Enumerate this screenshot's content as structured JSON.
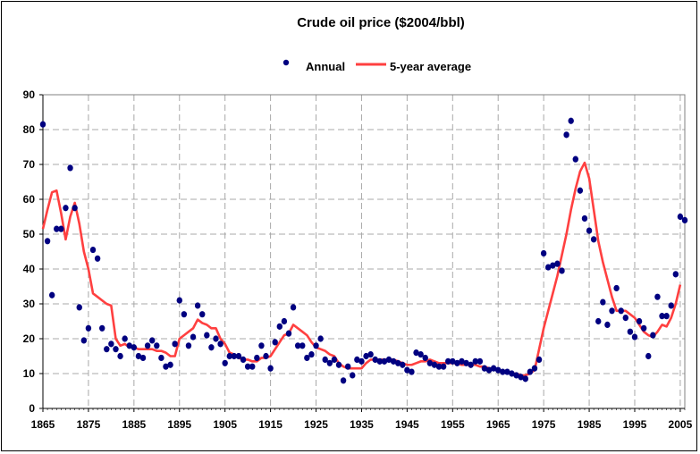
{
  "chart_data": {
    "type": "line",
    "title": "Crude oil price ($2004/bbl)",
    "xlabel": "",
    "ylabel": "",
    "xlim": [
      1865,
      2006
    ],
    "ylim": [
      0,
      90
    ],
    "x_ticks": [
      "1865",
      "1875",
      "1885",
      "1895",
      "1905",
      "1915",
      "1925",
      "1935",
      "1945",
      "1955",
      "1965",
      "1975",
      "1985",
      "1995",
      "2005"
    ],
    "y_ticks": [
      "0",
      "10",
      "20",
      "30",
      "40",
      "50",
      "60",
      "70",
      "80",
      "90"
    ],
    "grid": true,
    "legend": "top",
    "series": [
      {
        "name": "Annual",
        "style": "scatter",
        "color": "#000080",
        "points": [
          [
            1865,
            81.5
          ],
          [
            1866,
            48
          ],
          [
            1867,
            32.5
          ],
          [
            1868,
            51.5
          ],
          [
            1869,
            51.5
          ],
          [
            1870,
            57.5
          ],
          [
            1871,
            69
          ],
          [
            1872,
            57.5
          ],
          [
            1873,
            29
          ],
          [
            1874,
            19.5
          ],
          [
            1875,
            23
          ],
          [
            1876,
            45.5
          ],
          [
            1877,
            43
          ],
          [
            1878,
            23
          ],
          [
            1879,
            17
          ],
          [
            1880,
            18.5
          ],
          [
            1881,
            17
          ],
          [
            1882,
            15
          ],
          [
            1883,
            20
          ],
          [
            1884,
            18
          ],
          [
            1885,
            17.5
          ],
          [
            1886,
            15
          ],
          [
            1887,
            14.5
          ],
          [
            1888,
            18
          ],
          [
            1889,
            19.5
          ],
          [
            1890,
            18
          ],
          [
            1891,
            14.5
          ],
          [
            1892,
            12
          ],
          [
            1893,
            12.5
          ],
          [
            1894,
            18.5
          ],
          [
            1895,
            31
          ],
          [
            1896,
            27
          ],
          [
            1897,
            18
          ],
          [
            1898,
            20.5
          ],
          [
            1899,
            29.5
          ],
          [
            1900,
            27
          ],
          [
            1901,
            21
          ],
          [
            1902,
            17.5
          ],
          [
            1903,
            20
          ],
          [
            1904,
            18.5
          ],
          [
            1905,
            13
          ],
          [
            1906,
            15
          ],
          [
            1907,
            15
          ],
          [
            1908,
            15
          ],
          [
            1909,
            14
          ],
          [
            1910,
            12
          ],
          [
            1911,
            12
          ],
          [
            1912,
            14.5
          ],
          [
            1913,
            18
          ],
          [
            1914,
            15
          ],
          [
            1915,
            11.5
          ],
          [
            1916,
            19
          ],
          [
            1917,
            23.5
          ],
          [
            1918,
            25
          ],
          [
            1919,
            21.5
          ],
          [
            1920,
            29
          ],
          [
            1921,
            18
          ],
          [
            1922,
            18
          ],
          [
            1923,
            14.5
          ],
          [
            1924,
            15.5
          ],
          [
            1925,
            18
          ],
          [
            1926,
            20
          ],
          [
            1927,
            14
          ],
          [
            1928,
            13
          ],
          [
            1929,
            14
          ],
          [
            1930,
            12.5
          ],
          [
            1931,
            8
          ],
          [
            1932,
            12
          ],
          [
            1933,
            9.5
          ],
          [
            1934,
            14
          ],
          [
            1935,
            13.5
          ],
          [
            1936,
            15
          ],
          [
            1937,
            15.5
          ],
          [
            1938,
            14
          ],
          [
            1939,
            13.5
          ],
          [
            1940,
            13.5
          ],
          [
            1941,
            14
          ],
          [
            1942,
            13.5
          ],
          [
            1943,
            13
          ],
          [
            1944,
            12.5
          ],
          [
            1945,
            11
          ],
          [
            1946,
            10.5
          ],
          [
            1947,
            16
          ],
          [
            1948,
            15.5
          ],
          [
            1949,
            14.5
          ],
          [
            1950,
            13
          ],
          [
            1951,
            12.5
          ],
          [
            1952,
            12
          ],
          [
            1953,
            12
          ],
          [
            1954,
            13.5
          ],
          [
            1955,
            13.5
          ],
          [
            1956,
            13
          ],
          [
            1957,
            13.5
          ],
          [
            1958,
            13
          ],
          [
            1959,
            12.5
          ],
          [
            1960,
            13.5
          ],
          [
            1961,
            13.5
          ],
          [
            1962,
            11.5
          ],
          [
            1963,
            11
          ],
          [
            1964,
            11.5
          ],
          [
            1965,
            11
          ],
          [
            1966,
            10.5
          ],
          [
            1967,
            10.5
          ],
          [
            1968,
            10
          ],
          [
            1969,
            9.5
          ],
          [
            1970,
            9
          ],
          [
            1971,
            8.5
          ],
          [
            1972,
            10.5
          ],
          [
            1973,
            11.5
          ],
          [
            1974,
            14
          ],
          [
            1975,
            44.5
          ],
          [
            1976,
            40.5
          ],
          [
            1977,
            41
          ],
          [
            1978,
            41.5
          ],
          [
            1979,
            39.5
          ],
          [
            1980,
            78.5
          ],
          [
            1981,
            82.5
          ],
          [
            1982,
            71.5
          ],
          [
            1983,
            62.5
          ],
          [
            1984,
            54.5
          ],
          [
            1985,
            51
          ],
          [
            1986,
            48.5
          ],
          [
            1987,
            25
          ],
          [
            1988,
            30.5
          ],
          [
            1989,
            24
          ],
          [
            1990,
            28
          ],
          [
            1991,
            34.5
          ],
          [
            1992,
            28
          ],
          [
            1993,
            26
          ],
          [
            1994,
            22
          ],
          [
            1995,
            20.5
          ],
          [
            1996,
            25
          ],
          [
            1997,
            23
          ],
          [
            1998,
            15
          ],
          [
            1999,
            21
          ],
          [
            2000,
            32
          ],
          [
            2001,
            26.5
          ],
          [
            2002,
            26.5
          ],
          [
            2003,
            29.5
          ],
          [
            2004,
            38.5
          ],
          [
            2005,
            55
          ],
          [
            2006,
            54
          ]
        ]
      },
      {
        "name": "5-year average",
        "style": "line",
        "color": "#ff4040",
        "points": [
          [
            1865,
            51.5
          ],
          [
            1866,
            57
          ],
          [
            1867,
            62
          ],
          [
            1868,
            62.5
          ],
          [
            1869,
            56
          ],
          [
            1870,
            48.5
          ],
          [
            1871,
            55
          ],
          [
            1872,
            59
          ],
          [
            1873,
            53
          ],
          [
            1874,
            45
          ],
          [
            1875,
            40
          ],
          [
            1876,
            33
          ],
          [
            1877,
            32
          ],
          [
            1878,
            31
          ],
          [
            1879,
            30
          ],
          [
            1880,
            29.5
          ],
          [
            1881,
            20
          ],
          [
            1882,
            18
          ],
          [
            1883,
            18.5
          ],
          [
            1884,
            17.5
          ],
          [
            1885,
            17.5
          ],
          [
            1886,
            17
          ],
          [
            1887,
            17
          ],
          [
            1888,
            17
          ],
          [
            1889,
            17
          ],
          [
            1890,
            16.5
          ],
          [
            1891,
            16.5
          ],
          [
            1892,
            16
          ],
          [
            1893,
            15
          ],
          [
            1894,
            15
          ],
          [
            1895,
            20
          ],
          [
            1896,
            21
          ],
          [
            1897,
            22
          ],
          [
            1898,
            23
          ],
          [
            1899,
            25.5
          ],
          [
            1900,
            24.5
          ],
          [
            1901,
            24
          ],
          [
            1902,
            23
          ],
          [
            1903,
            23
          ],
          [
            1904,
            20
          ],
          [
            1905,
            18.5
          ],
          [
            1906,
            16
          ],
          [
            1907,
            15.5
          ],
          [
            1908,
            14.5
          ],
          [
            1909,
            14
          ],
          [
            1910,
            14
          ],
          [
            1911,
            13.5
          ],
          [
            1912,
            13.5
          ],
          [
            1913,
            14.5
          ],
          [
            1914,
            14.5
          ],
          [
            1915,
            15
          ],
          [
            1916,
            17
          ],
          [
            1917,
            19
          ],
          [
            1918,
            21
          ],
          [
            1919,
            21.5
          ],
          [
            1920,
            24
          ],
          [
            1921,
            23
          ],
          [
            1922,
            22
          ],
          [
            1923,
            21
          ],
          [
            1924,
            19
          ],
          [
            1925,
            17.5
          ],
          [
            1926,
            17
          ],
          [
            1927,
            16.5
          ],
          [
            1928,
            15.5
          ],
          [
            1929,
            15
          ],
          [
            1930,
            13
          ],
          [
            1931,
            12
          ],
          [
            1932,
            11.5
          ],
          [
            1933,
            11.5
          ],
          [
            1934,
            11.5
          ],
          [
            1935,
            11.5
          ],
          [
            1936,
            13
          ],
          [
            1937,
            14
          ],
          [
            1938,
            14
          ],
          [
            1939,
            14
          ],
          [
            1940,
            14
          ],
          [
            1941,
            14
          ],
          [
            1942,
            14
          ],
          [
            1943,
            13.5
          ],
          [
            1944,
            13
          ],
          [
            1945,
            12.5
          ],
          [
            1946,
            12.5
          ],
          [
            1947,
            13
          ],
          [
            1948,
            13.5
          ],
          [
            1949,
            13.5
          ],
          [
            1950,
            14
          ],
          [
            1951,
            13.5
          ],
          [
            1952,
            13
          ],
          [
            1953,
            13
          ],
          [
            1954,
            13
          ],
          [
            1955,
            13
          ],
          [
            1956,
            13
          ],
          [
            1957,
            12.5
          ],
          [
            1958,
            12.5
          ],
          [
            1959,
            12.5
          ],
          [
            1960,
            12.5
          ],
          [
            1961,
            12
          ],
          [
            1962,
            12
          ],
          [
            1963,
            11.5
          ],
          [
            1964,
            11.5
          ],
          [
            1965,
            11
          ],
          [
            1966,
            10.5
          ],
          [
            1967,
            10.5
          ],
          [
            1968,
            10
          ],
          [
            1969,
            10
          ],
          [
            1970,
            9.5
          ],
          [
            1971,
            9.5
          ],
          [
            1972,
            10
          ],
          [
            1973,
            11
          ],
          [
            1974,
            17
          ],
          [
            1975,
            23
          ],
          [
            1976,
            28
          ],
          [
            1977,
            33
          ],
          [
            1978,
            38
          ],
          [
            1979,
            44
          ],
          [
            1980,
            50
          ],
          [
            1981,
            57
          ],
          [
            1982,
            63
          ],
          [
            1983,
            68
          ],
          [
            1984,
            70.5
          ],
          [
            1985,
            66
          ],
          [
            1986,
            57
          ],
          [
            1987,
            48
          ],
          [
            1988,
            42
          ],
          [
            1989,
            37
          ],
          [
            1990,
            32
          ],
          [
            1991,
            28
          ],
          [
            1992,
            28
          ],
          [
            1993,
            28
          ],
          [
            1994,
            27
          ],
          [
            1995,
            26
          ],
          [
            1996,
            24
          ],
          [
            1997,
            22
          ],
          [
            1998,
            21
          ],
          [
            1999,
            20.5
          ],
          [
            2000,
            22
          ],
          [
            2001,
            24
          ],
          [
            2002,
            23.5
          ],
          [
            2003,
            26
          ],
          [
            2004,
            30
          ],
          [
            2005,
            35.5
          ]
        ]
      }
    ]
  }
}
